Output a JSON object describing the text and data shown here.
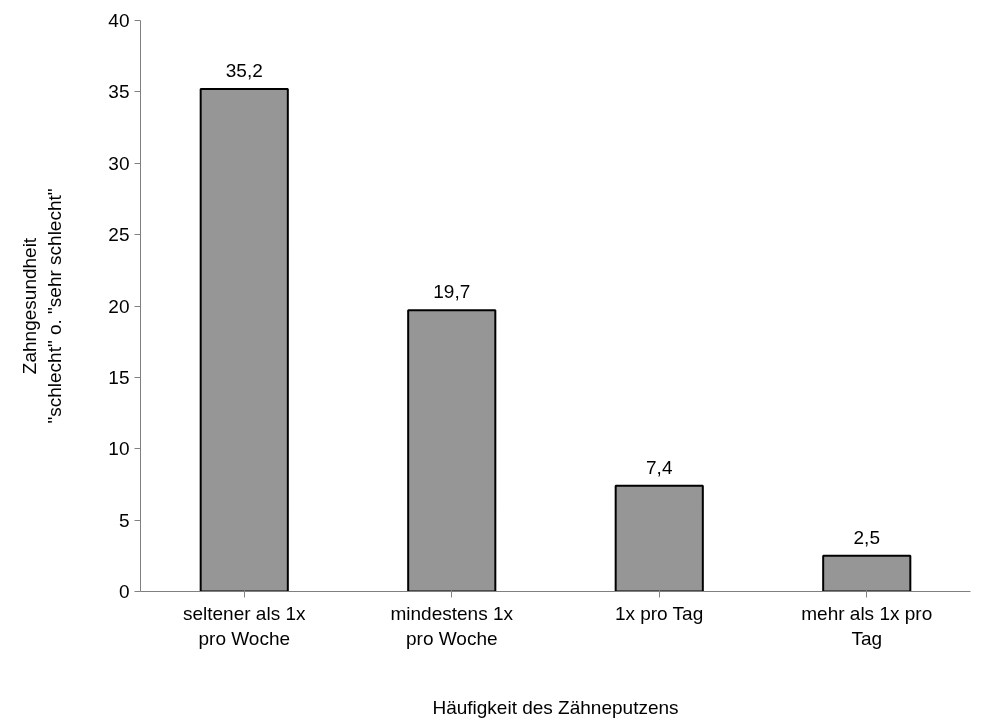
{
  "chart_data": {
    "type": "bar",
    "xlabel": "Häufigkeit des Zähneputzens",
    "ylabel": "Zahngesundheit\n\"schlecht\" o. \"sehr schlecht\"",
    "categories": [
      "seltener als 1x pro Woche",
      "mindestens 1x pro Woche",
      "1x pro Tag",
      "mehr als 1x pro Tag"
    ],
    "values": [
      35.2,
      19.7,
      7.4,
      2.5
    ],
    "value_labels": [
      "35,2",
      "19,7",
      "7,4",
      "2,5"
    ],
    "color": "#969696",
    "ylim": [
      0,
      40
    ],
    "yticks": [
      0,
      5,
      10,
      15,
      20,
      25,
      30,
      35,
      40
    ],
    "grid": false
  }
}
